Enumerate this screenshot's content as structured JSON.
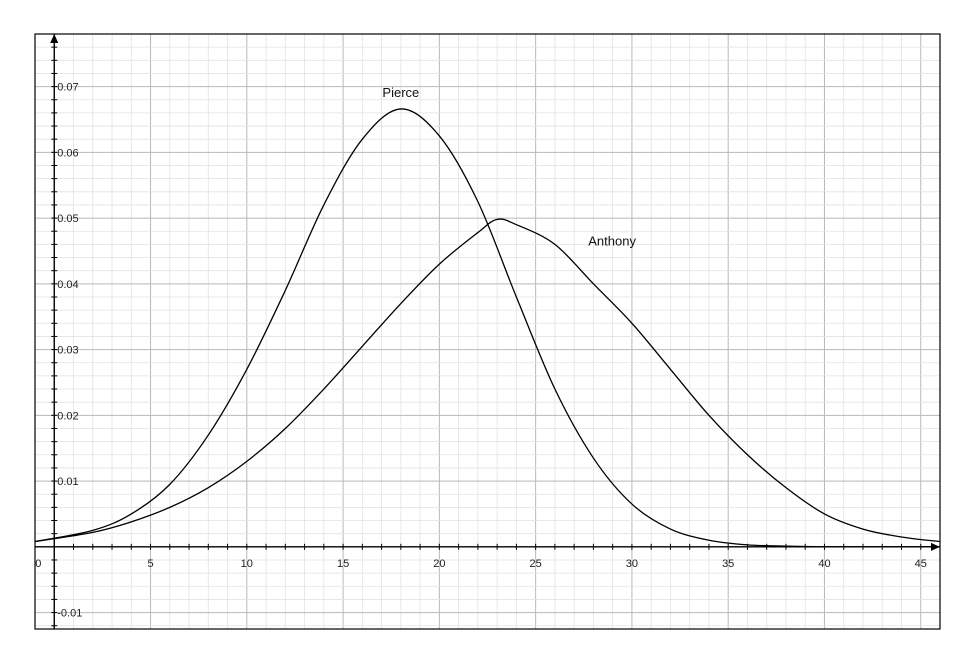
{
  "chart_data": {
    "type": "line",
    "title": "",
    "xlabel": "",
    "ylabel": "",
    "xlim": [
      -1,
      46
    ],
    "ylim": [
      -0.0125,
      0.078
    ],
    "grid": true,
    "x_ticks": [
      0,
      5,
      10,
      15,
      20,
      25,
      30,
      35,
      40,
      45
    ],
    "x_tick_labels": [
      "0",
      "5",
      "10",
      "15",
      "20",
      "25",
      "30",
      "35",
      "40",
      "45"
    ],
    "y_ticks": [
      -0.01,
      0.01,
      0.02,
      0.03,
      0.04,
      0.05,
      0.06,
      0.07
    ],
    "y_tick_labels": [
      "-0.01",
      "0.01",
      "0.02",
      "0.03",
      "0.04",
      "0.05",
      "0.06",
      "0.07"
    ],
    "series": [
      {
        "name": "Pierce",
        "x": [
          -1,
          2,
          4,
          6,
          8,
          10,
          12,
          14,
          16,
          18,
          20,
          22,
          24,
          26,
          28,
          30,
          32,
          34,
          36,
          38,
          40,
          42,
          44,
          46
        ],
        "y": [
          0.0008,
          0.0025,
          0.005,
          0.0095,
          0.017,
          0.027,
          0.039,
          0.052,
          0.062,
          0.0666,
          0.0625,
          0.0525,
          0.038,
          0.024,
          0.0135,
          0.0065,
          0.0027,
          0.001,
          0.0003,
          0.0001,
          0.0,
          0.0,
          0.0,
          0.0
        ]
      },
      {
        "name": "Anthony",
        "x": [
          -1,
          2,
          4,
          6,
          8,
          10,
          12,
          14,
          16,
          18,
          20,
          22,
          23,
          24,
          26,
          28,
          30,
          32,
          34,
          36,
          38,
          40,
          42,
          44,
          46
        ],
        "y": [
          0.0008,
          0.0022,
          0.0038,
          0.006,
          0.009,
          0.013,
          0.018,
          0.024,
          0.0305,
          0.037,
          0.043,
          0.0478,
          0.0498,
          0.049,
          0.046,
          0.04,
          0.034,
          0.027,
          0.02,
          0.014,
          0.009,
          0.005,
          0.0027,
          0.0015,
          0.0008
        ]
      }
    ]
  }
}
